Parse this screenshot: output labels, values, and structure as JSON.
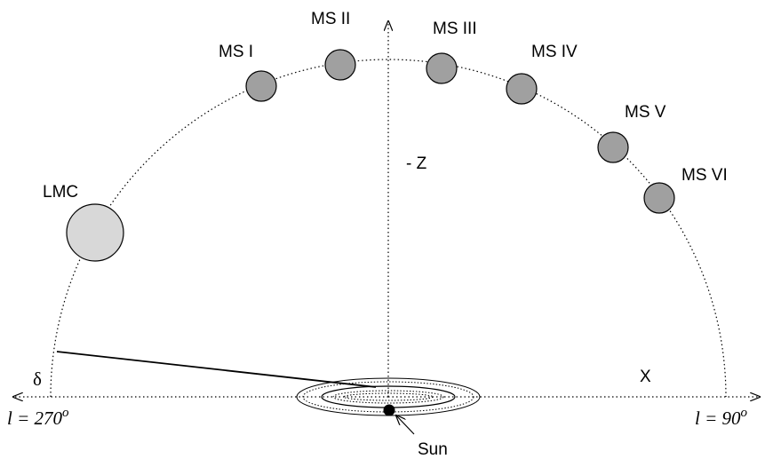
{
  "labels": {
    "lmc": "LMC",
    "ms1": "MS I",
    "ms2": "MS II",
    "ms3": "MS III",
    "ms4": "MS IV",
    "ms5": "MS V",
    "ms6": "MS VI",
    "z_axis": "- Z",
    "x_axis": "X",
    "delta": "δ",
    "sun": "Sun",
    "l_left_main": "l = 270",
    "l_left_sup": "o",
    "l_right_main": "l = 90",
    "l_right_sup": "o"
  },
  "colors": {
    "stream_clouds": "#a0a0a0",
    "lmc": "#d8d8d8",
    "stroke": "#000000"
  }
}
